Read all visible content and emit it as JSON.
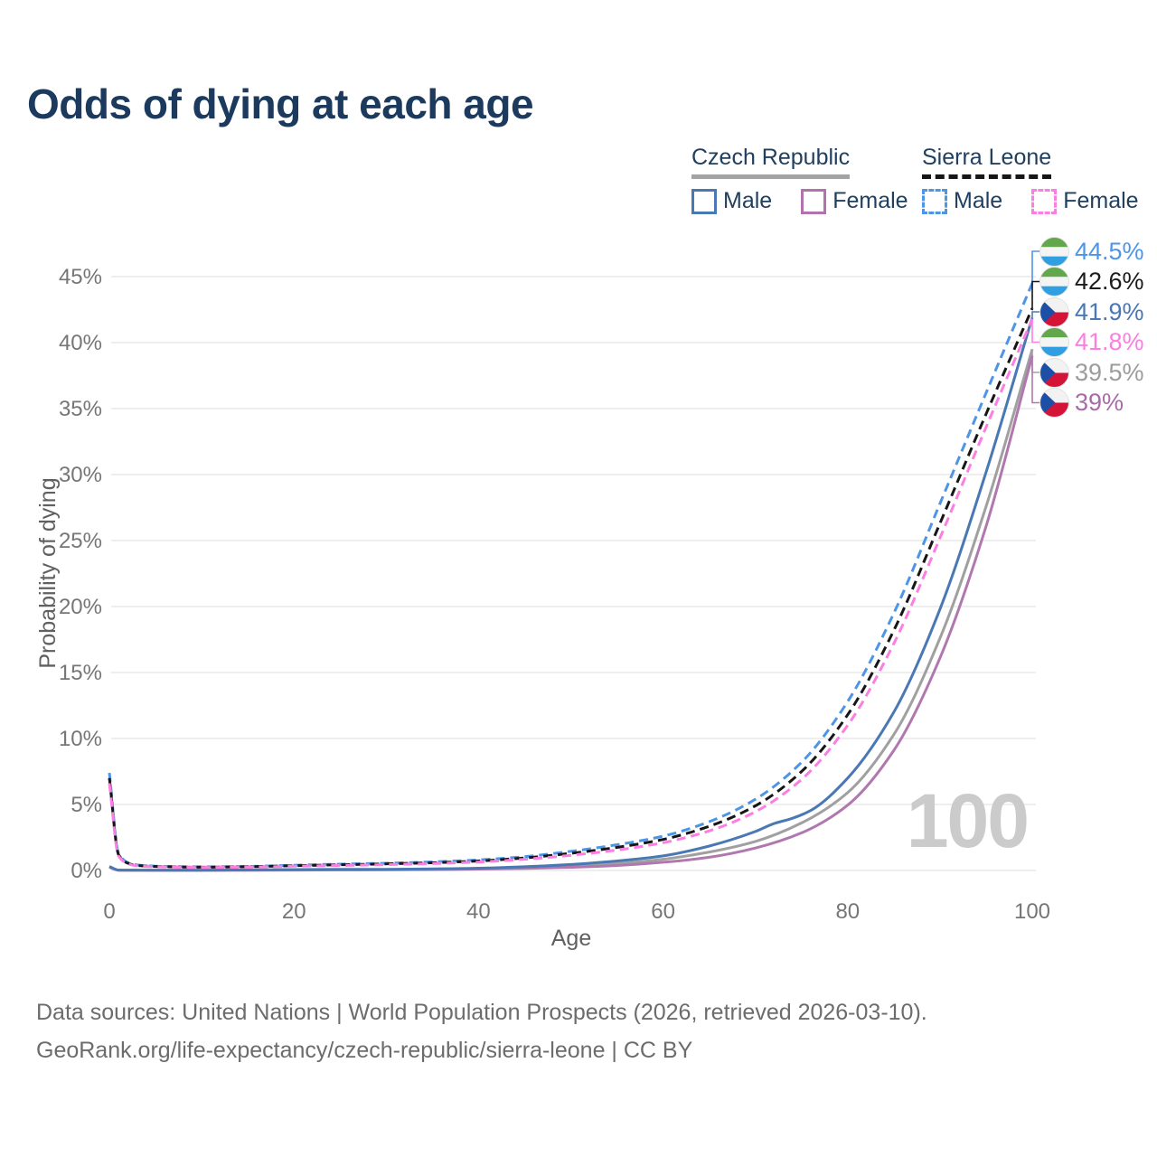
{
  "title": "Odds of dying at each age",
  "legend": {
    "groups": [
      {
        "country": "Czech Republic",
        "line_style": "solid",
        "underline_color": "#a3a3a3",
        "items": [
          {
            "label": "Male",
            "color": "#4a78b4",
            "dashed": false
          },
          {
            "label": "Female",
            "color": "#b073ae",
            "dashed": false
          }
        ]
      },
      {
        "country": "Sierra Leone",
        "line_style": "dashed",
        "underline_color": "#161616",
        "items": [
          {
            "label": "Male",
            "color": "#4e95e6",
            "dashed": true
          },
          {
            "label": "Female",
            "color": "#fc7ee2",
            "dashed": true
          }
        ]
      }
    ]
  },
  "chart_data": {
    "type": "line",
    "xlabel": "Age",
    "ylabel": "Probability of dying",
    "watermark": "100",
    "xlim": [
      0,
      100
    ],
    "ylim_pct": [
      0,
      47
    ],
    "grid": "horizontal-only",
    "x_ticks": [
      [
        0,
        "0"
      ],
      [
        20,
        "20"
      ],
      [
        40,
        "40"
      ],
      [
        60,
        "60"
      ],
      [
        80,
        "80"
      ],
      [
        100,
        "100"
      ]
    ],
    "y_ticks": [
      [
        0,
        "0%"
      ],
      [
        5,
        "5%"
      ],
      [
        10,
        "10%"
      ],
      [
        15,
        "15%"
      ],
      [
        20,
        "20%"
      ],
      [
        25,
        "25%"
      ],
      [
        30,
        "30%"
      ],
      [
        35,
        "35%"
      ],
      [
        40,
        "40%"
      ],
      [
        45,
        "45%"
      ]
    ],
    "series": [
      {
        "id": "cz_total",
        "name": "Czech Republic all",
        "color": "#a0a0a0",
        "dashed": false,
        "points": [
          [
            0,
            0.28
          ],
          [
            1,
            0.025
          ],
          [
            5,
            0.015
          ],
          [
            10,
            0.015
          ],
          [
            15,
            0.03
          ],
          [
            20,
            0.05
          ],
          [
            25,
            0.06
          ],
          [
            30,
            0.07
          ],
          [
            35,
            0.09
          ],
          [
            40,
            0.13
          ],
          [
            45,
            0.2
          ],
          [
            50,
            0.33
          ],
          [
            55,
            0.53
          ],
          [
            60,
            0.85
          ],
          [
            65,
            1.4
          ],
          [
            70,
            2.2
          ],
          [
            75,
            3.6
          ],
          [
            80,
            5.9
          ],
          [
            85,
            10.3
          ],
          [
            90,
            17.6
          ],
          [
            95,
            27.6
          ],
          [
            100,
            39.5
          ]
        ]
      },
      {
        "id": "cz_female",
        "name": "Czech Republic Female",
        "color": "#b078ae",
        "dashed": false,
        "points": [
          [
            0,
            0.25
          ],
          [
            1,
            0.02
          ],
          [
            5,
            0.012
          ],
          [
            10,
            0.012
          ],
          [
            15,
            0.02
          ],
          [
            20,
            0.03
          ],
          [
            25,
            0.04
          ],
          [
            30,
            0.05
          ],
          [
            35,
            0.07
          ],
          [
            40,
            0.1
          ],
          [
            45,
            0.15
          ],
          [
            50,
            0.24
          ],
          [
            55,
            0.38
          ],
          [
            60,
            0.62
          ],
          [
            65,
            1.0
          ],
          [
            70,
            1.7
          ],
          [
            75,
            2.85
          ],
          [
            80,
            4.95
          ],
          [
            85,
            9.1
          ],
          [
            90,
            16.1
          ],
          [
            95,
            26.1
          ],
          [
            100,
            39.0
          ]
        ]
      },
      {
        "id": "cz_male",
        "name": "Czech Republic Male",
        "color": "#4a78b4",
        "dashed": false,
        "points": [
          [
            0,
            0.3
          ],
          [
            1,
            0.03
          ],
          [
            5,
            0.02
          ],
          [
            10,
            0.02
          ],
          [
            15,
            0.04
          ],
          [
            20,
            0.07
          ],
          [
            25,
            0.08
          ],
          [
            30,
            0.09
          ],
          [
            35,
            0.12
          ],
          [
            40,
            0.17
          ],
          [
            45,
            0.28
          ],
          [
            50,
            0.45
          ],
          [
            55,
            0.72
          ],
          [
            60,
            1.1
          ],
          [
            65,
            1.85
          ],
          [
            70,
            2.95
          ],
          [
            72,
            3.55
          ],
          [
            74,
            3.95
          ],
          [
            76,
            4.55
          ],
          [
            80,
            7.0
          ],
          [
            85,
            12.0
          ],
          [
            90,
            19.8
          ],
          [
            95,
            30.2
          ],
          [
            100,
            41.9
          ]
        ]
      },
      {
        "id": "sl_male",
        "name": "Sierra Leone Male",
        "color": "#4e95e6",
        "dashed": true,
        "points": [
          [
            0,
            7.4
          ],
          [
            1,
            1.3
          ],
          [
            2,
            0.6
          ],
          [
            3,
            0.42
          ],
          [
            5,
            0.33
          ],
          [
            10,
            0.28
          ],
          [
            15,
            0.31
          ],
          [
            20,
            0.4
          ],
          [
            25,
            0.48
          ],
          [
            30,
            0.55
          ],
          [
            35,
            0.65
          ],
          [
            40,
            0.8
          ],
          [
            45,
            1.05
          ],
          [
            50,
            1.45
          ],
          [
            55,
            1.95
          ],
          [
            60,
            2.6
          ],
          [
            65,
            3.7
          ],
          [
            70,
            5.4
          ],
          [
            75,
            8.2
          ],
          [
            80,
            12.8
          ],
          [
            85,
            19.5
          ],
          [
            90,
            27.8
          ],
          [
            95,
            36.2
          ],
          [
            100,
            44.5
          ]
        ]
      },
      {
        "id": "sl_total",
        "name": "Sierra Leone all",
        "color": "#161616",
        "dashed": true,
        "points": [
          [
            0,
            7.0
          ],
          [
            1,
            1.2
          ],
          [
            2,
            0.55
          ],
          [
            3,
            0.38
          ],
          [
            5,
            0.3
          ],
          [
            10,
            0.25
          ],
          [
            15,
            0.28
          ],
          [
            20,
            0.36
          ],
          [
            25,
            0.43
          ],
          [
            30,
            0.5
          ],
          [
            35,
            0.58
          ],
          [
            40,
            0.72
          ],
          [
            45,
            0.95
          ],
          [
            50,
            1.3
          ],
          [
            55,
            1.75
          ],
          [
            60,
            2.35
          ],
          [
            65,
            3.35
          ],
          [
            70,
            4.9
          ],
          [
            75,
            7.5
          ],
          [
            80,
            11.8
          ],
          [
            85,
            18.2
          ],
          [
            90,
            26.3
          ],
          [
            95,
            34.6
          ],
          [
            100,
            42.6
          ]
        ]
      },
      {
        "id": "sl_female",
        "name": "Sierra Leone Female",
        "color": "#fc7ee2",
        "dashed": true,
        "points": [
          [
            0,
            6.6
          ],
          [
            1,
            1.1
          ],
          [
            2,
            0.5
          ],
          [
            3,
            0.35
          ],
          [
            5,
            0.28
          ],
          [
            10,
            0.23
          ],
          [
            15,
            0.25
          ],
          [
            20,
            0.32
          ],
          [
            25,
            0.38
          ],
          [
            30,
            0.44
          ],
          [
            35,
            0.52
          ],
          [
            40,
            0.64
          ],
          [
            45,
            0.85
          ],
          [
            50,
            1.15
          ],
          [
            55,
            1.55
          ],
          [
            60,
            2.1
          ],
          [
            65,
            3.0
          ],
          [
            70,
            4.45
          ],
          [
            75,
            6.9
          ],
          [
            80,
            11.0
          ],
          [
            85,
            17.2
          ],
          [
            90,
            25.2
          ],
          [
            95,
            33.6
          ],
          [
            100,
            41.8
          ]
        ]
      }
    ],
    "end_labels": [
      {
        "text": "44.5%",
        "series": "sl_male",
        "flag": "sierra-leone",
        "color": "#4e95e6"
      },
      {
        "text": "42.6%",
        "series": "sl_total",
        "flag": "sierra-leone",
        "color": "#1c1c1c"
      },
      {
        "text": "41.9%",
        "series": "cz_male",
        "flag": "czech-republic",
        "color": "#4a78b4"
      },
      {
        "text": "41.8%",
        "series": "sl_female",
        "flag": "sierra-leone",
        "color": "#fc7ee2"
      },
      {
        "text": "39.5%",
        "series": "cz_total",
        "flag": "czech-republic",
        "color": "#9c9c9c"
      },
      {
        "text": "39%",
        "series": "cz_female",
        "flag": "czech-republic",
        "color": "#a86ba8"
      }
    ],
    "flag_colors": {
      "sierra_leone": {
        "green": "#62a74c",
        "white": "#f4f4f4",
        "blue": "#2f9fe1"
      },
      "czech_republic": {
        "white": "#f2f2f3",
        "red": "#d41436",
        "blue": "#1d4fa6"
      }
    }
  },
  "footer": {
    "sources_line": "Data sources: United Nations | World Population Prospects (2026, retrieved 2026-03-10).",
    "url_line": "GeoRank.org/life-expectancy/czech-republic/sierra-leone | CC BY"
  }
}
